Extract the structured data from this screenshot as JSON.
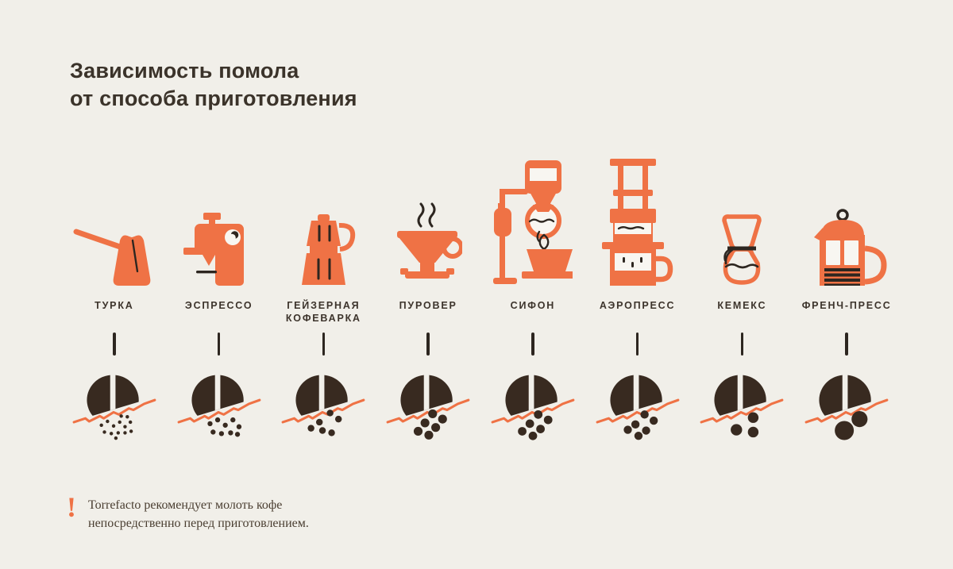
{
  "palette": {
    "background": "#f1efe9",
    "accent_orange": "#ef7245",
    "title_text": "#3b332a",
    "label_text": "#3d342c",
    "bean_brown": "#382a20",
    "icon_detail_dark": "#2d2620",
    "footnote_text": "#4a3e31",
    "paper_white": "#f8f6f1"
  },
  "title": {
    "line1": "Зависимость помола",
    "line2": "от способа приготовления"
  },
  "footnote": {
    "mark": "!",
    "line1": "Torrefacto рекомендует молоть кофе",
    "line2": "непосредственно перед приготовлением."
  },
  "methods": [
    {
      "label_lines": [
        "ТУРКА"
      ],
      "icon": "cezve-icon",
      "grind": {
        "dots": [
          [
            33,
            80,
            2.3
          ],
          [
            41,
            75,
            2.3
          ],
          [
            49,
            81,
            2.3
          ],
          [
            57,
            76,
            2.3
          ],
          [
            64,
            82,
            2.3
          ],
          [
            71,
            76,
            2.3
          ],
          [
            37,
            89,
            2.3
          ],
          [
            46,
            91,
            2.3
          ],
          [
            55,
            90,
            2.3
          ],
          [
            64,
            90,
            2.3
          ],
          [
            72,
            88,
            2.3
          ],
          [
            52,
            97,
            2.3
          ],
          [
            67,
            69,
            2.3
          ],
          [
            59,
            68,
            2.3
          ]
        ]
      }
    },
    {
      "label_lines": [
        "ЭСПРЕССО"
      ],
      "icon": "espresso-machine-icon",
      "grind": {
        "dots": [
          [
            38,
            78,
            3.3
          ],
          [
            48,
            73,
            3.3
          ],
          [
            58,
            80,
            3.3
          ],
          [
            68,
            73,
            3.3
          ],
          [
            76,
            82,
            3.3
          ],
          [
            42,
            89,
            3.3
          ],
          [
            53,
            91,
            3.3
          ],
          [
            65,
            90,
            3.3
          ],
          [
            74,
            92,
            3.3
          ]
        ]
      }
    },
    {
      "label_lines": [
        "ГЕЙЗЕРНАЯ",
        "КОФЕВАРКА"
      ],
      "icon": "moka-pot-icon",
      "grind": {
        "dots": [
          [
            59,
            64,
            4.4
          ],
          [
            70,
            72,
            4.4
          ],
          [
            45,
            76,
            4.4
          ],
          [
            34,
            84,
            4.4
          ],
          [
            49,
            87,
            4.4
          ],
          [
            61,
            90,
            4.4
          ]
        ]
      }
    },
    {
      "label_lines": [
        "ПУРОВЕР"
      ],
      "icon": "pour-over-icon",
      "grind": {
        "dots": [
          [
            56,
            65,
            5.8
          ],
          [
            69,
            72,
            5.8
          ],
          [
            46,
            77,
            5.8
          ],
          [
            60,
            83,
            5.8
          ],
          [
            37,
            88,
            5.8
          ],
          [
            51,
            93,
            5.8
          ]
        ]
      }
    },
    {
      "label_lines": [
        "СИФОН"
      ],
      "icon": "siphon-icon",
      "grind": {
        "dots": [
          [
            57,
            66,
            5.6
          ],
          [
            70,
            73,
            5.6
          ],
          [
            46,
            78,
            5.6
          ],
          [
            60,
            85,
            5.6
          ],
          [
            36,
            88,
            5.6
          ],
          [
            50,
            94,
            5.6
          ]
        ]
      }
    },
    {
      "label_lines": [
        "АЭРОПРЕСС"
      ],
      "icon": "aeropress-icon",
      "grind": {
        "dots": [
          [
            59,
            66,
            5.4
          ],
          [
            71,
            74,
            5.4
          ],
          [
            47,
            79,
            5.4
          ],
          [
            61,
            87,
            5.4
          ],
          [
            37,
            86,
            5.4
          ],
          [
            51,
            94,
            5.4
          ]
        ]
      }
    },
    {
      "label_lines": [
        "КЕМЕКС"
      ],
      "icon": "chemex-icon",
      "grind": {
        "dots": [
          [
            65,
            70,
            7
          ],
          [
            43,
            86,
            7.5
          ],
          [
            65,
            89,
            7
          ]
        ]
      }
    },
    {
      "label_lines": [
        "ФРЕНЧ-ПРЕСС"
      ],
      "icon": "french-press-icon",
      "grind": {
        "dots": [
          [
            67,
            72,
            10.5
          ],
          [
            47,
            87,
            12.5
          ]
        ]
      }
    }
  ]
}
